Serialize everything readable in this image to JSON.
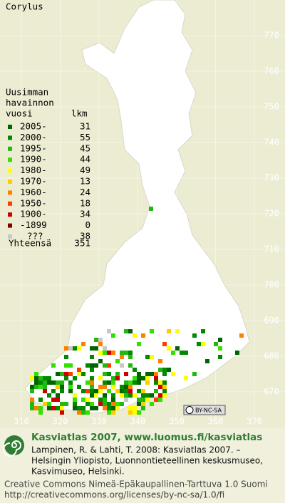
{
  "title": "Corylus",
  "legend": {
    "heading": [
      "Uusimman",
      "havainnon",
      "vuosi"
    ],
    "count_heading": "lkm",
    "rows": [
      {
        "label": "2005-",
        "count": 31,
        "color": "#006400"
      },
      {
        "label": "2000-",
        "count": 55,
        "color": "#008a00"
      },
      {
        "label": "1995-",
        "count": 45,
        "color": "#22b814"
      },
      {
        "label": "1990-",
        "count": 44,
        "color": "#33e000"
      },
      {
        "label": "1980-",
        "count": 49,
        "color": "#ffff00"
      },
      {
        "label": "1970-",
        "count": 13,
        "color": "#ffcc00"
      },
      {
        "label": "1960-",
        "count": 24,
        "color": "#ff8000"
      },
      {
        "label": "1950-",
        "count": 18,
        "color": "#ff3c00"
      },
      {
        "label": "1900-",
        "count": 34,
        "color": "#cc0000"
      },
      {
        "label": "-1899",
        "count": 0,
        "color": "#800000"
      },
      {
        "label": "???",
        "count": 38,
        "color": "#c8c8c8"
      }
    ],
    "total_label": "Yhteensä",
    "total": 351
  },
  "y_labels": [
    770,
    760,
    750,
    740,
    730,
    720,
    710,
    700,
    690,
    680,
    670
  ],
  "x_labels": [
    310,
    320,
    330,
    340,
    350,
    360,
    370
  ],
  "license_badge": "BY-NC-SA",
  "footer": {
    "headline": "Kasviatlas 2007, www.luomus.fi/kasviatlas",
    "citation": [
      "Lampinen, R. & Lahti, T. 2008: Kasviatlas 2007. –",
      "Helsingin Yliopisto, Luonnontieteellinen keskusmuseo,",
      "Kasvimuseo, Helsinki."
    ],
    "license": [
      "Creative Commons Nimeä-Epäkaupallinen-Tarttuva 1.0 Suomi",
      "http://creativecommons.org/licenses/by-nc-sa/1.0/fi"
    ]
  }
}
